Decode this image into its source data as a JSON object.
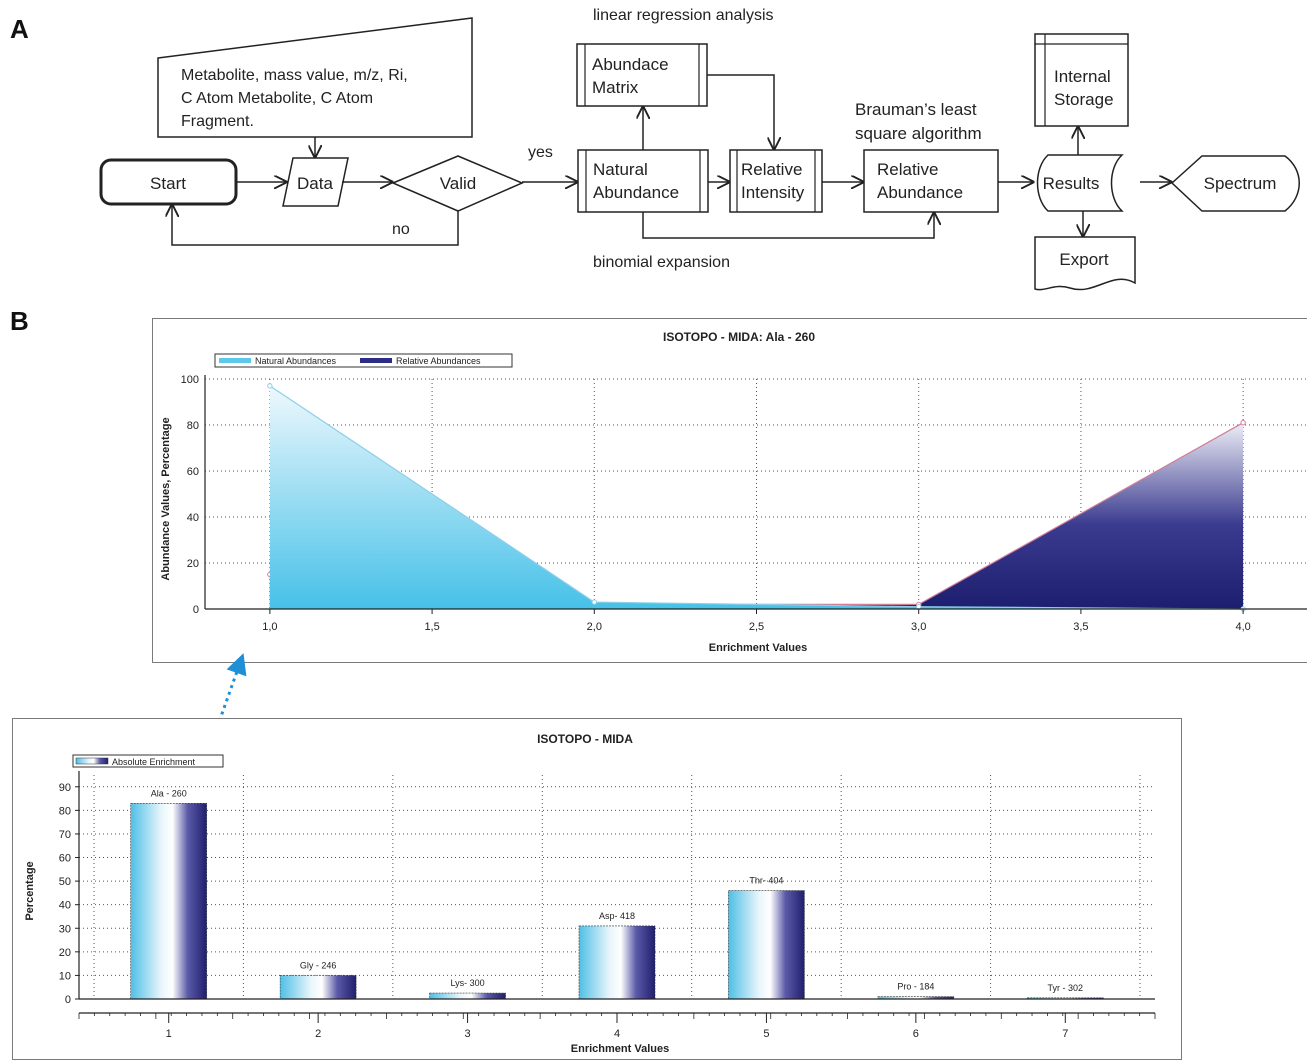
{
  "panels": {
    "a": "A",
    "b": "B"
  },
  "flowchart": {
    "nodes": {
      "input_note": [
        "Metabolite, mass value, m/z, Ri,",
        "C Atom Metabolite, C Atom",
        "Fragment."
      ],
      "start": "Start",
      "data": "Data",
      "valid": "Valid",
      "natural_abundance": [
        "Natural",
        "Abundance"
      ],
      "abundance_matrix": [
        "Abundace",
        "Matrix"
      ],
      "relative_intensity": [
        "Relative",
        "Intensity"
      ],
      "relative_abundance": [
        "Relative",
        "Abundance"
      ],
      "results": "Results",
      "internal_storage": [
        "Internal",
        "Storage"
      ],
      "export": "Export",
      "spectrum": "Spectrum"
    },
    "labels": {
      "yes": "yes",
      "no": "no",
      "linear_regression": "linear regression analysis",
      "brauman": [
        "Brauman’s least",
        "square algorithm"
      ],
      "binomial": "binomial expansion"
    }
  },
  "chart_data": [
    {
      "type": "area",
      "title": "ISOTOPO - MIDA: Ala - 260",
      "xlabel": "Enrichment Values",
      "ylabel": "Abundance Values, Percentage",
      "xlim": [
        0.8,
        4.2
      ],
      "ylim": [
        0,
        100
      ],
      "x_ticks": [
        1.0,
        1.5,
        2.0,
        2.5,
        3.0,
        3.5,
        4.0
      ],
      "x_tick_labels": [
        "1,0",
        "1,5",
        "2,0",
        "2,5",
        "3,0",
        "3,5",
        "4,0"
      ],
      "y_ticks": [
        0,
        20,
        40,
        60,
        80,
        100
      ],
      "grid": true,
      "legend": "top-left",
      "series": [
        {
          "name": "Natural Abundances",
          "x": [
            1,
            2,
            3,
            4
          ],
          "values": [
            97,
            3,
            1,
            0
          ],
          "color": "#5ec8ea"
        },
        {
          "name": "Relative Abundances",
          "x": [
            1,
            2,
            3,
            4
          ],
          "values": [
            15,
            2,
            2,
            81
          ],
          "color": "#2d2d86"
        }
      ]
    },
    {
      "type": "bar",
      "title": "ISOTOPO - MIDA",
      "xlabel": "Enrichment Values",
      "ylabel": "Percentage",
      "ylim": [
        0,
        95
      ],
      "y_ticks": [
        0,
        10,
        20,
        30,
        40,
        50,
        60,
        70,
        80,
        90
      ],
      "grid": true,
      "legend": "top-left",
      "categories": [
        "1",
        "2",
        "3",
        "4",
        "5",
        "6",
        "7"
      ],
      "series": [
        {
          "name": "Absolute Enrichment",
          "values": [
            83,
            10,
            2.5,
            31,
            46,
            1,
            0.5
          ]
        }
      ],
      "data_labels": [
        "Ala - 260",
        "Gly - 246",
        "Lys- 300",
        "Asp- 418",
        "Thr- 404",
        "Pro - 184",
        "Tyr - 302"
      ]
    }
  ]
}
